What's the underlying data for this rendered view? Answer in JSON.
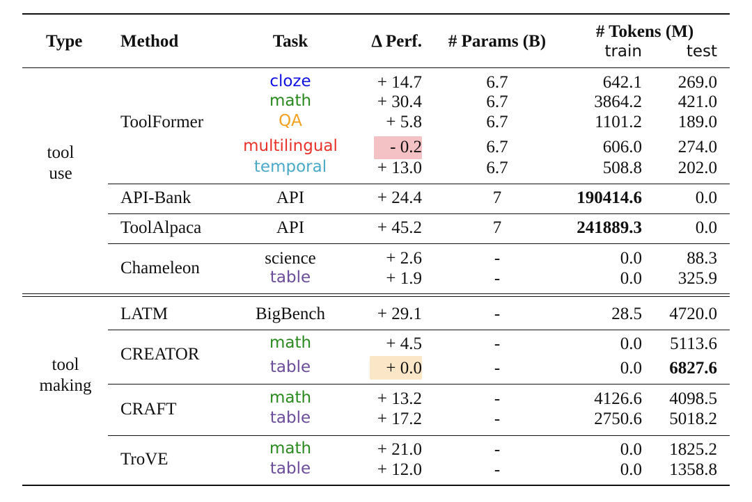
{
  "colors": {
    "cloze": "#1212e6",
    "math": "#2a8a1f",
    "QA": "#f2a01e",
    "multilingual": "#e8322a",
    "temporal": "#4aa9c9",
    "table": "#6b4d9b",
    "negative_highlight": "#f4c1c4",
    "zero_highlight": "#fbe7c7"
  },
  "header": {
    "type": "Type",
    "method": "Method",
    "task": "Task",
    "perf": "Δ Perf.",
    "params": "# Params (B)",
    "tokens": "# Tokens (M)",
    "train": "train",
    "test": "test"
  },
  "groups": {
    "tool_use": [
      "tool",
      "use"
    ],
    "tool_making": [
      "tool",
      "making"
    ]
  },
  "rows": [
    {
      "method": "ToolFormer",
      "task": "cloze",
      "perf": "+ 14.7",
      "params": "6.7",
      "train": "642.1",
      "test": "269.0"
    },
    {
      "method": "",
      "task": "math",
      "perf": "+ 30.4",
      "params": "6.7",
      "train": "3864.2",
      "test": "421.0"
    },
    {
      "method": "",
      "task": "QA",
      "perf": "+ 5.8",
      "params": "6.7",
      "train": "1101.2",
      "test": "189.0"
    },
    {
      "method": "",
      "task": "multilingual",
      "perf": "- 0.2",
      "params": "6.7",
      "train": "606.0",
      "test": "274.0"
    },
    {
      "method": "",
      "task": "temporal",
      "perf": "+ 13.0",
      "params": "6.7",
      "train": "508.8",
      "test": "202.0"
    },
    {
      "method": "API-Bank",
      "task": "API",
      "perf": "+ 24.4",
      "params": "7",
      "train": "190414.6",
      "test": "0.0"
    },
    {
      "method": "ToolAlpaca",
      "task": "API",
      "perf": "+ 45.2",
      "params": "7",
      "train": "241889.3",
      "test": "0.0"
    },
    {
      "method": "Chameleon",
      "task": "science",
      "perf": "+ 2.6",
      "params": "-",
      "train": "0.0",
      "test": "88.3"
    },
    {
      "method": "",
      "task": "table",
      "perf": "+ 1.9",
      "params": "-",
      "train": "0.0",
      "test": "325.9"
    },
    {
      "method": "LATM",
      "task": "BigBench",
      "perf": "+ 29.1",
      "params": "-",
      "train": "28.5",
      "test": "4720.0"
    },
    {
      "method": "CREATOR",
      "task": "math",
      "perf": "+ 4.5",
      "params": "-",
      "train": "0.0",
      "test": "5113.6"
    },
    {
      "method": "",
      "task": "table",
      "perf": "+ 0.0",
      "params": "-",
      "train": "0.0",
      "test": "6827.6"
    },
    {
      "method": "CRAFT",
      "task": "math",
      "perf": "+ 13.2",
      "params": "-",
      "train": "4126.6",
      "test": "4098.5"
    },
    {
      "method": "",
      "task": "table",
      "perf": "+ 17.2",
      "params": "-",
      "train": "2750.6",
      "test": "5018.2"
    },
    {
      "method": "TroVE",
      "task": "math",
      "perf": "+ 21.0",
      "params": "-",
      "train": "0.0",
      "test": "1825.2"
    },
    {
      "method": "",
      "task": "table",
      "perf": "+ 12.0",
      "params": "-",
      "train": "0.0",
      "test": "1358.8"
    }
  ]
}
